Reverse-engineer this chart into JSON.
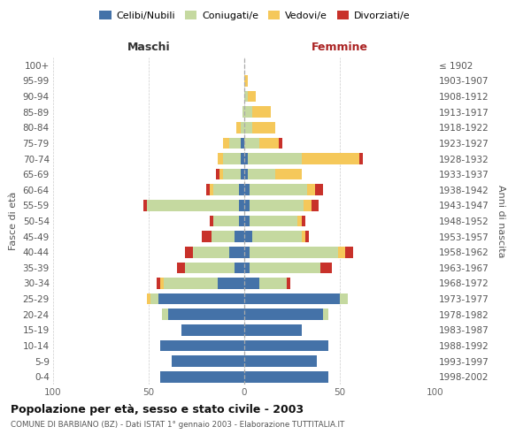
{
  "age_groups": [
    "0-4",
    "5-9",
    "10-14",
    "15-19",
    "20-24",
    "25-29",
    "30-34",
    "35-39",
    "40-44",
    "45-49",
    "50-54",
    "55-59",
    "60-64",
    "65-69",
    "70-74",
    "75-79",
    "80-84",
    "85-89",
    "90-94",
    "95-99",
    "100+"
  ],
  "birth_years": [
    "1998-2002",
    "1993-1997",
    "1988-1992",
    "1983-1987",
    "1978-1982",
    "1973-1977",
    "1968-1972",
    "1963-1967",
    "1958-1962",
    "1953-1957",
    "1948-1952",
    "1943-1947",
    "1938-1942",
    "1933-1937",
    "1928-1932",
    "1923-1927",
    "1918-1922",
    "1913-1917",
    "1908-1912",
    "1903-1907",
    "≤ 1902"
  ],
  "maschi_celibi": [
    44,
    38,
    44,
    33,
    40,
    45,
    14,
    5,
    8,
    5,
    3,
    3,
    3,
    2,
    2,
    2,
    0,
    0,
    0,
    0,
    0
  ],
  "maschi_coniugati": [
    0,
    0,
    0,
    0,
    3,
    4,
    28,
    26,
    19,
    12,
    13,
    48,
    13,
    9,
    9,
    6,
    2,
    1,
    0,
    0,
    0
  ],
  "maschi_vedovi": [
    0,
    0,
    0,
    0,
    0,
    2,
    2,
    0,
    0,
    0,
    0,
    0,
    2,
    2,
    3,
    3,
    2,
    0,
    0,
    0,
    0
  ],
  "maschi_divorziati": [
    0,
    0,
    0,
    0,
    0,
    0,
    2,
    4,
    4,
    5,
    2,
    2,
    2,
    2,
    0,
    0,
    0,
    0,
    0,
    0,
    0
  ],
  "femmine_nubili": [
    44,
    38,
    44,
    30,
    41,
    50,
    8,
    3,
    3,
    4,
    3,
    3,
    3,
    2,
    2,
    0,
    0,
    0,
    0,
    0,
    0
  ],
  "femmine_coniugate": [
    0,
    0,
    0,
    0,
    3,
    4,
    14,
    37,
    46,
    26,
    25,
    28,
    30,
    14,
    28,
    8,
    4,
    4,
    2,
    0,
    0
  ],
  "femmine_vedove": [
    0,
    0,
    0,
    0,
    0,
    0,
    0,
    0,
    4,
    2,
    2,
    4,
    4,
    14,
    30,
    10,
    12,
    10,
    4,
    2,
    0
  ],
  "femmine_divorziate": [
    0,
    0,
    0,
    0,
    0,
    0,
    2,
    6,
    4,
    2,
    2,
    4,
    4,
    0,
    2,
    2,
    0,
    0,
    0,
    0,
    0
  ],
  "color_celibi": "#4472a8",
  "color_coniugati": "#c5d9a0",
  "color_vedovi": "#f5c85a",
  "color_divorziati": "#c8312a",
  "title": "Popolazione per età, sesso e stato civile - 2003",
  "subtitle": "COMUNE DI BARBIANO (BZ) - Dati ISTAT 1° gennaio 2003 - Elaborazione TUTTITALIA.IT",
  "legend_labels": [
    "Celibi/Nubili",
    "Coniugati/e",
    "Vedovi/e",
    "Divorziati/e"
  ],
  "ylabel_left": "Fasce di età",
  "ylabel_right": "Anni di nascita",
  "xlabel_maschi": "Maschi",
  "xlabel_femmine": "Femmine",
  "xlim": 100
}
